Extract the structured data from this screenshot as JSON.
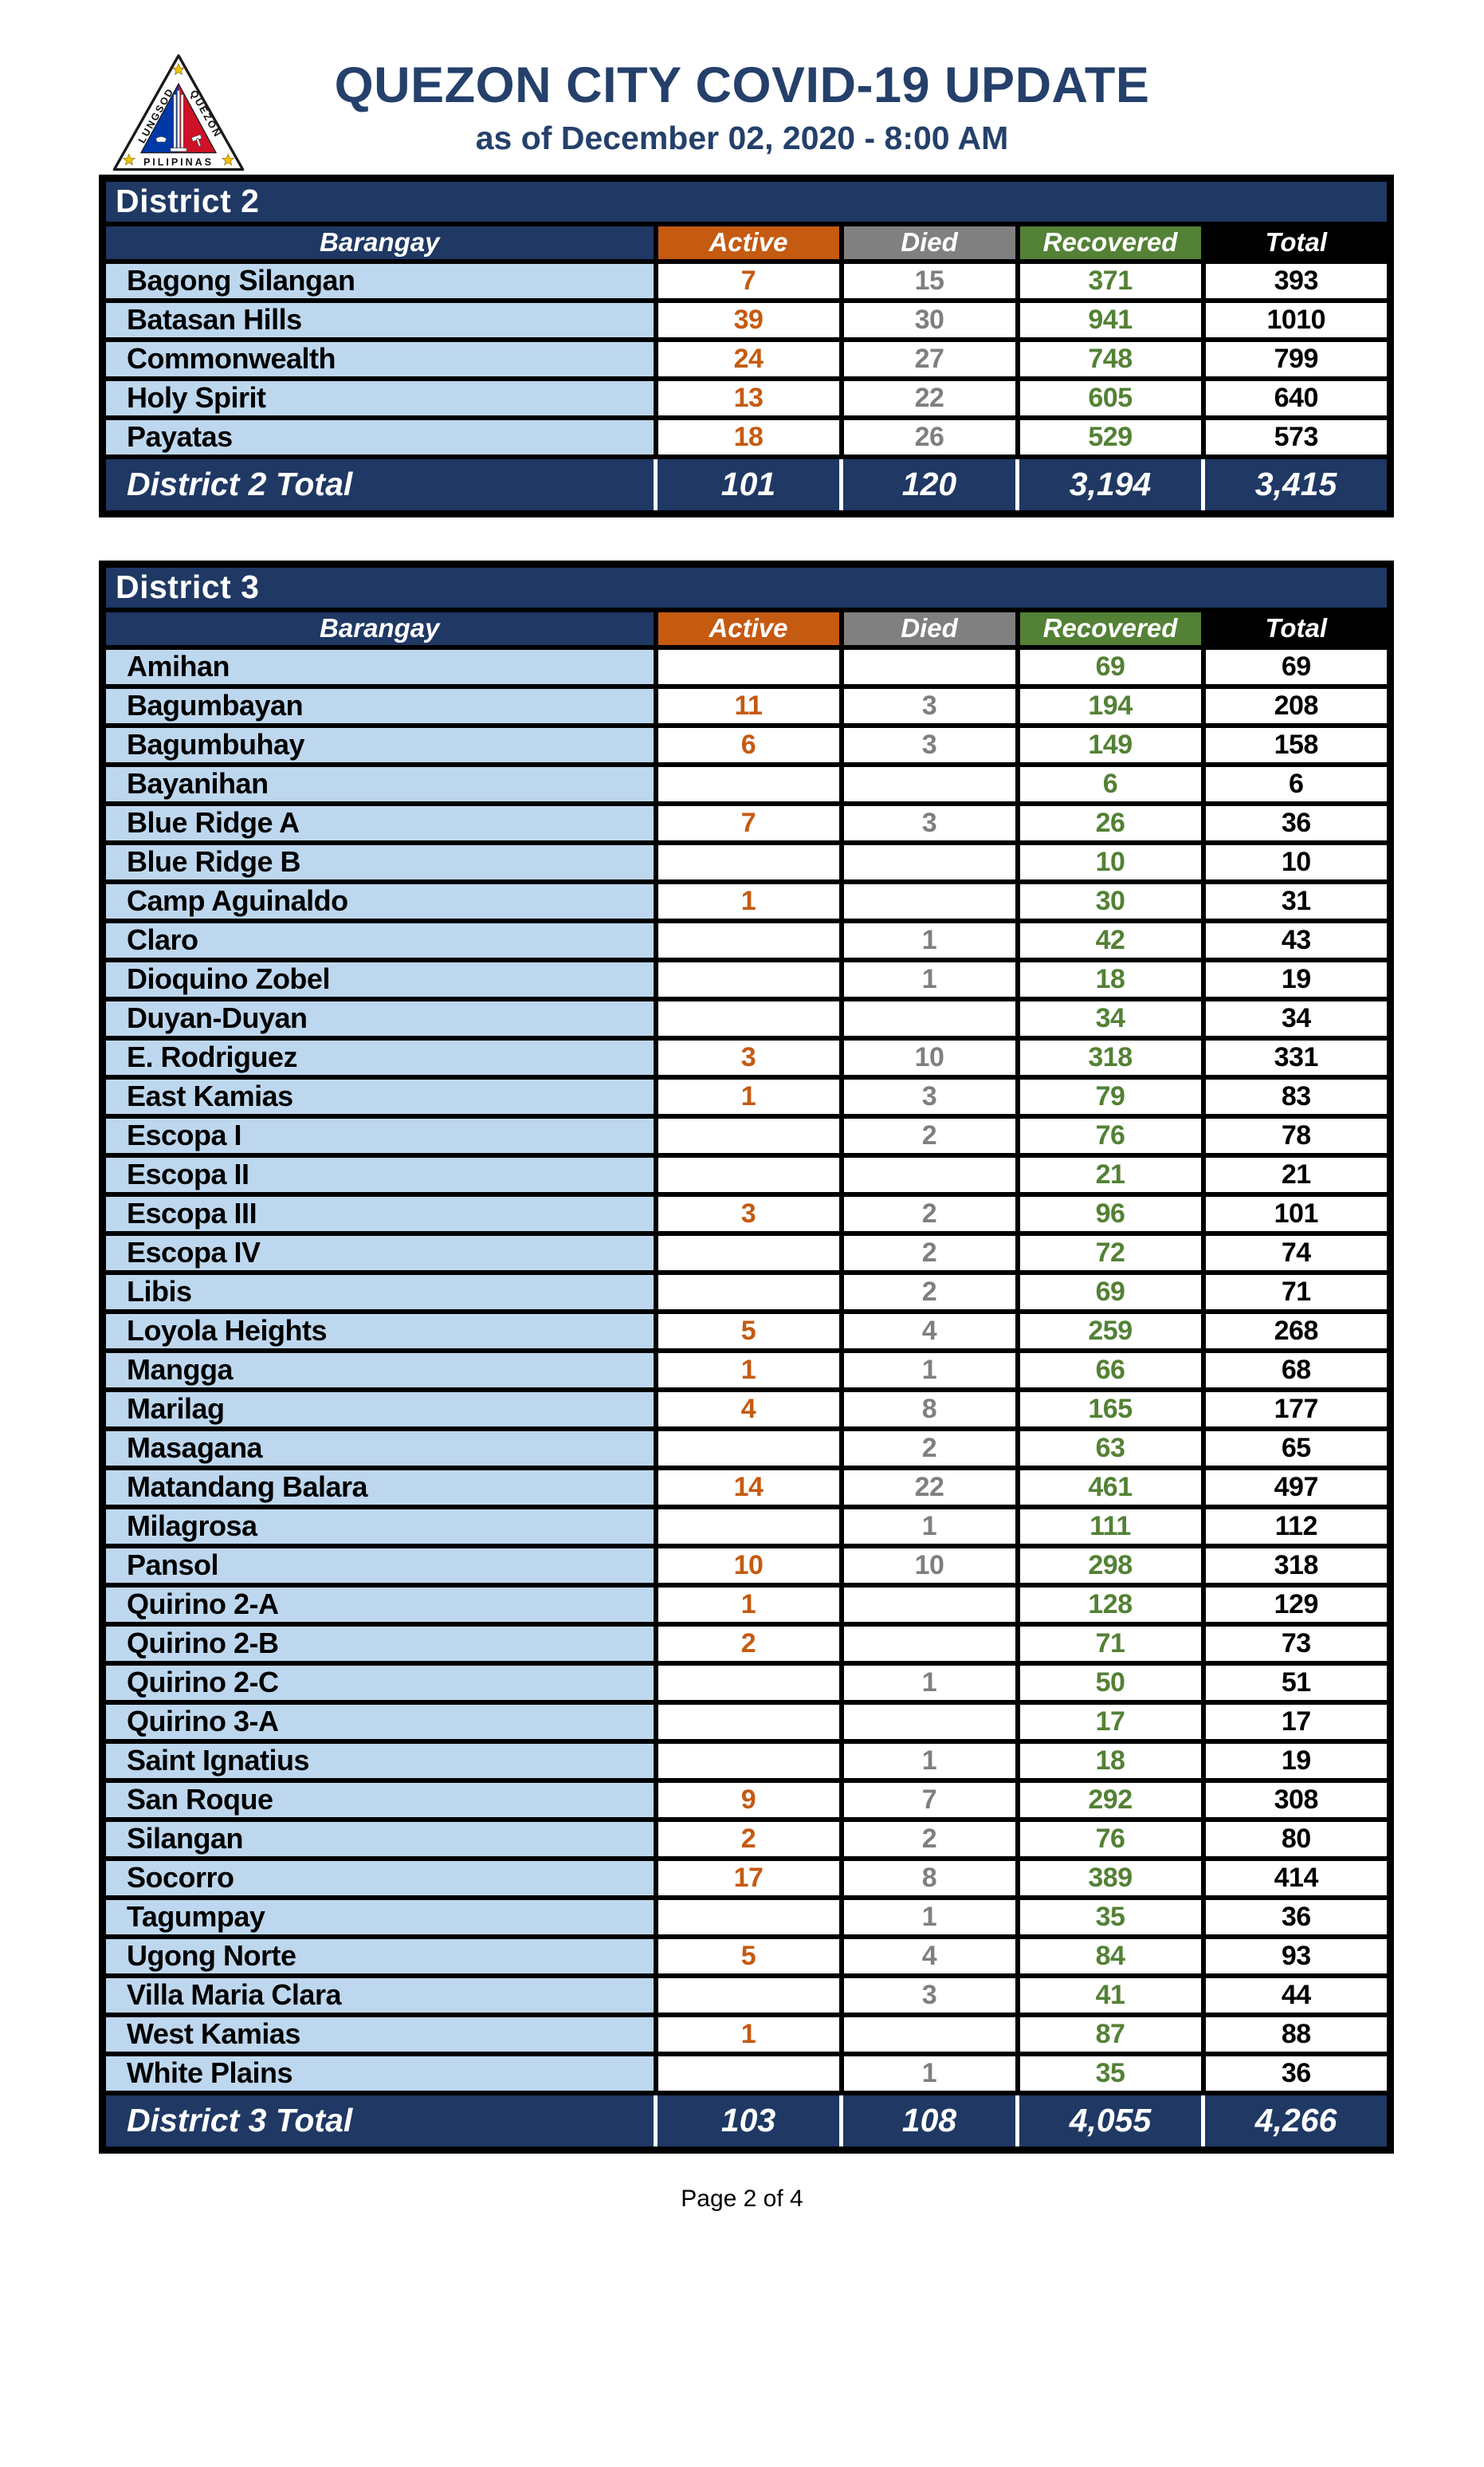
{
  "header": {
    "title": "QUEZON CITY COVID-19 UPDATE",
    "subtitle": "as of December 02, 2020 - 8:00 AM",
    "logo": {
      "icon": "quezon-city-seal-icon",
      "text_left": "LUNGSOD",
      "text_right": "QUEZON",
      "text_bottom": "PILIPINAS"
    }
  },
  "colors": {
    "navy": "#1F3864",
    "title_navy": "#24406B",
    "orange": "#C55A11",
    "gray_header": "#808080",
    "gray_value": "#7F7F7F",
    "green": "#538135",
    "light_blue": "#BDD7EE",
    "black": "#000000"
  },
  "columns": [
    {
      "key": "barangay",
      "label": "Barangay"
    },
    {
      "key": "active",
      "label": "Active"
    },
    {
      "key": "died",
      "label": "Died"
    },
    {
      "key": "recovered",
      "label": "Recovered"
    },
    {
      "key": "total",
      "label": "Total"
    }
  ],
  "tables": [
    {
      "title": "District 2",
      "rows": [
        [
          "Bagong Silangan",
          "7",
          "15",
          "371",
          "393"
        ],
        [
          "Batasan Hills",
          "39",
          "30",
          "941",
          "1010"
        ],
        [
          "Commonwealth",
          "24",
          "27",
          "748",
          "799"
        ],
        [
          "Holy Spirit",
          "13",
          "22",
          "605",
          "640"
        ],
        [
          "Payatas",
          "18",
          "26",
          "529",
          "573"
        ]
      ],
      "total": {
        "label": "District 2 Total",
        "values": [
          "101",
          "120",
          "3,194",
          "3,415"
        ]
      }
    },
    {
      "title": "District 3",
      "rows": [
        [
          "Amihan",
          "",
          "",
          "69",
          "69"
        ],
        [
          "Bagumbayan",
          "11",
          "3",
          "194",
          "208"
        ],
        [
          "Bagumbuhay",
          "6",
          "3",
          "149",
          "158"
        ],
        [
          "Bayanihan",
          "",
          "",
          "6",
          "6"
        ],
        [
          "Blue Ridge A",
          "7",
          "3",
          "26",
          "36"
        ],
        [
          "Blue Ridge B",
          "",
          "",
          "10",
          "10"
        ],
        [
          "Camp Aguinaldo",
          "1",
          "",
          "30",
          "31"
        ],
        [
          "Claro",
          "",
          "1",
          "42",
          "43"
        ],
        [
          "Dioquino Zobel",
          "",
          "1",
          "18",
          "19"
        ],
        [
          "Duyan-Duyan",
          "",
          "",
          "34",
          "34"
        ],
        [
          "E. Rodriguez",
          "3",
          "10",
          "318",
          "331"
        ],
        [
          "East Kamias",
          "1",
          "3",
          "79",
          "83"
        ],
        [
          "Escopa I",
          "",
          "2",
          "76",
          "78"
        ],
        [
          "Escopa II",
          "",
          "",
          "21",
          "21"
        ],
        [
          "Escopa III",
          "3",
          "2",
          "96",
          "101"
        ],
        [
          "Escopa IV",
          "",
          "2",
          "72",
          "74"
        ],
        [
          "Libis",
          "",
          "2",
          "69",
          "71"
        ],
        [
          "Loyola Heights",
          "5",
          "4",
          "259",
          "268"
        ],
        [
          "Mangga",
          "1",
          "1",
          "66",
          "68"
        ],
        [
          "Marilag",
          "4",
          "8",
          "165",
          "177"
        ],
        [
          "Masagana",
          "",
          "2",
          "63",
          "65"
        ],
        [
          "Matandang Balara",
          "14",
          "22",
          "461",
          "497"
        ],
        [
          "Milagrosa",
          "",
          "1",
          "111",
          "112"
        ],
        [
          "Pansol",
          "10",
          "10",
          "298",
          "318"
        ],
        [
          "Quirino 2-A",
          "1",
          "",
          "128",
          "129"
        ],
        [
          "Quirino 2-B",
          "2",
          "",
          "71",
          "73"
        ],
        [
          "Quirino 2-C",
          "",
          "1",
          "50",
          "51"
        ],
        [
          "Quirino 3-A",
          "",
          "",
          "17",
          "17"
        ],
        [
          "Saint Ignatius",
          "",
          "1",
          "18",
          "19"
        ],
        [
          "San Roque",
          "9",
          "7",
          "292",
          "308"
        ],
        [
          "Silangan",
          "2",
          "2",
          "76",
          "80"
        ],
        [
          "Socorro",
          "17",
          "8",
          "389",
          "414"
        ],
        [
          "Tagumpay",
          "",
          "1",
          "35",
          "36"
        ],
        [
          "Ugong Norte",
          "5",
          "4",
          "84",
          "93"
        ],
        [
          "Villa Maria Clara",
          "",
          "3",
          "41",
          "44"
        ],
        [
          "West Kamias",
          "1",
          "",
          "87",
          "88"
        ],
        [
          "White Plains",
          "",
          "1",
          "35",
          "36"
        ]
      ],
      "total": {
        "label": "District 3 Total",
        "values": [
          "103",
          "108",
          "4,055",
          "4,266"
        ]
      }
    }
  ],
  "footer": {
    "page_label": "Page 2 of 4"
  }
}
